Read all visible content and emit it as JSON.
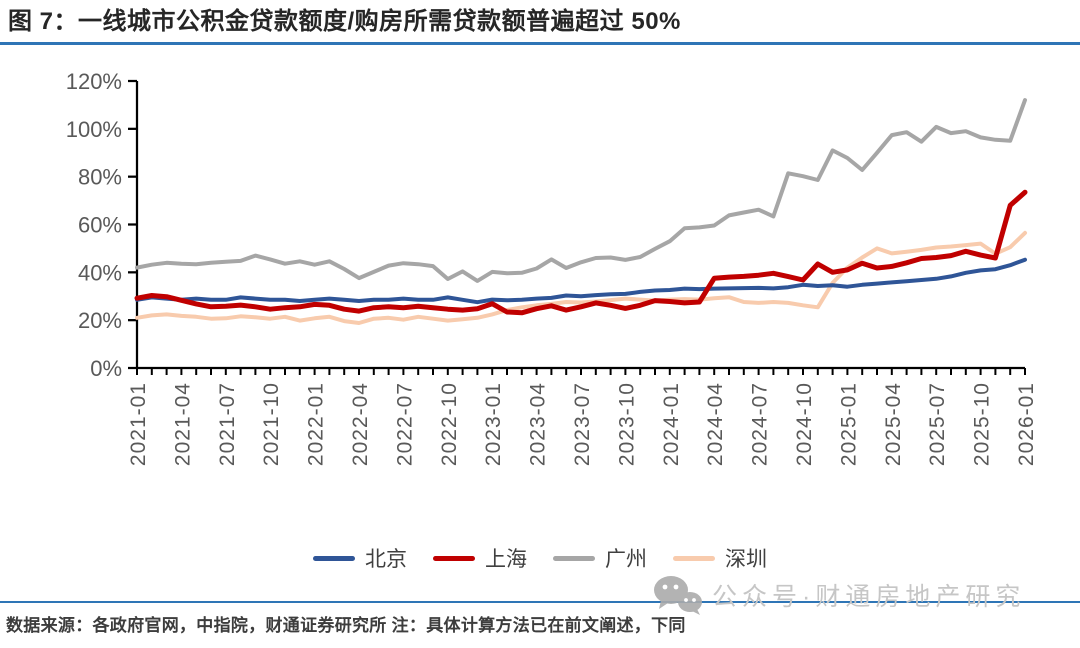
{
  "page": {
    "title": "图 7：一线城市公积金贷款额度/购房所需贷款额普遍超过 50%",
    "footer": "数据来源：各政府官网，中指院，财通证券研究所 注：具体计算方法已在前文阐述，下同",
    "watermark": "公众号·财通房地产研究",
    "accent_blue": "#2E75B6"
  },
  "chart_data": {
    "type": "line",
    "title": "一线城市公积金贷款额度/购房所需贷款额",
    "xlabel": "",
    "ylabel": "",
    "ylim": [
      0,
      120
    ],
    "ytick_step": 20,
    "ytick_suffix": "%",
    "grid": false,
    "legend_position": "bottom",
    "x_label_every": 3,
    "axis_color": "#000000",
    "tick_label_color": "#595959",
    "x": [
      "2021-01",
      "2021-02",
      "2021-03",
      "2021-04",
      "2021-05",
      "2021-06",
      "2021-07",
      "2021-08",
      "2021-09",
      "2021-10",
      "2021-11",
      "2021-12",
      "2022-01",
      "2022-02",
      "2022-03",
      "2022-04",
      "2022-05",
      "2022-06",
      "2022-07",
      "2022-08",
      "2022-09",
      "2022-10",
      "2022-11",
      "2022-12",
      "2023-01",
      "2023-02",
      "2023-03",
      "2023-04",
      "2023-05",
      "2023-06",
      "2023-07",
      "2023-08",
      "2023-09",
      "2023-10",
      "2023-11",
      "2023-12",
      "2024-01",
      "2024-02",
      "2024-03",
      "2024-04",
      "2024-05",
      "2024-06",
      "2024-07",
      "2024-08",
      "2024-09",
      "2024-10",
      "2024-11",
      "2024-12",
      "2025-01",
      "2025-02",
      "2025-03",
      "2025-04",
      "2025-05",
      "2025-06",
      "2025-07",
      "2025-08",
      "2025-09",
      "2025-10",
      "2025-11",
      "2025-12",
      "2026-01"
    ],
    "draw_order": [
      "guangzhou",
      "shenzhen",
      "beijing",
      "shanghai"
    ],
    "series": [
      {
        "id": "beijing",
        "name": "北京",
        "color": "#2F5597",
        "width": 4,
        "values": [
          28.5,
          29.5,
          29,
          28.5,
          29,
          28.5,
          28.5,
          29.5,
          29,
          28.5,
          28.5,
          28,
          28.5,
          29,
          28.5,
          28,
          28.5,
          28.5,
          29,
          28.5,
          28.5,
          29.5,
          28.5,
          27.5,
          28.6,
          28.3,
          28.5,
          29,
          29.3,
          30.3,
          30,
          30.5,
          30.8,
          31,
          31.8,
          32.4,
          32.6,
          33.2,
          33,
          33.2,
          33.3,
          33.4,
          33.5,
          33.3,
          33.8,
          34.8,
          34.3,
          34.6,
          34,
          34.8,
          35.3,
          35.8,
          36.3,
          36.8,
          37.3,
          38.3,
          39.8,
          40.8,
          41.3,
          43,
          45.3
        ]
      },
      {
        "id": "shanghai",
        "name": "上海",
        "color": "#C00000",
        "width": 5,
        "values": [
          29.2,
          30.3,
          29.8,
          28.3,
          26.8,
          25.6,
          25.8,
          26.3,
          25.6,
          24.6,
          25.2,
          25.6,
          26.6,
          26.2,
          24.6,
          23.8,
          25.2,
          25.6,
          25.2,
          25.8,
          25.2,
          24.6,
          24.2,
          24.8,
          26.9,
          23.4,
          23.1,
          24.8,
          26,
          24.2,
          25.6,
          27.2,
          26.2,
          24.9,
          26.2,
          28.2,
          27.8,
          27.2,
          27.6,
          37.5,
          38,
          38.3,
          38.8,
          39.6,
          38.2,
          36.8,
          43.5,
          40,
          41,
          43.8,
          41.8,
          42.5,
          44,
          45.8,
          46.2,
          47,
          48.8,
          47.2,
          46,
          68,
          73.5
        ]
      },
      {
        "id": "guangzhou",
        "name": "广州",
        "color": "#A6A6A6",
        "width": 4,
        "values": [
          42,
          43.2,
          44,
          43.6,
          43.4,
          44,
          44.4,
          44.8,
          47,
          45.4,
          43.6,
          44.6,
          43.2,
          44.6,
          41.4,
          37.6,
          40.2,
          42.8,
          43.8,
          43.4,
          42.6,
          37.2,
          40.4,
          36.4,
          40.2,
          39.6,
          39.8,
          41.6,
          45.4,
          41.8,
          44.2,
          46,
          46.2,
          45.2,
          46.4,
          49.8,
          53,
          58.4,
          58.8,
          59.6,
          63.8,
          65,
          66.2,
          63.4,
          81.4,
          80.2,
          78.6,
          91,
          87.8,
          82.8,
          90,
          97.4,
          98.6,
          94.6,
          100.8,
          98.2,
          99,
          96.4,
          95.4,
          95,
          112
        ]
      },
      {
        "id": "shenzhen",
        "name": "深圳",
        "color": "#F8CBAD",
        "width": 4,
        "values": [
          21,
          22,
          22.4,
          21.8,
          21.4,
          20.6,
          20.8,
          21.6,
          21.2,
          20.6,
          21.4,
          19.8,
          20.8,
          21.4,
          19.6,
          18.8,
          20.6,
          21,
          20.2,
          21.4,
          20.6,
          19.8,
          20.4,
          21,
          22.4,
          24.2,
          25.4,
          26.2,
          26.8,
          27.6,
          27.4,
          27.8,
          28.4,
          29,
          28.6,
          28.2,
          28.6,
          28.8,
          28.6,
          29.2,
          29.6,
          27.6,
          27.2,
          27.6,
          27.2,
          26.2,
          25.4,
          35.6,
          42,
          46.2,
          50,
          47.9,
          48.6,
          49.4,
          50.4,
          50.8,
          51.4,
          52,
          47.8,
          50.5,
          56.5
        ]
      }
    ]
  }
}
